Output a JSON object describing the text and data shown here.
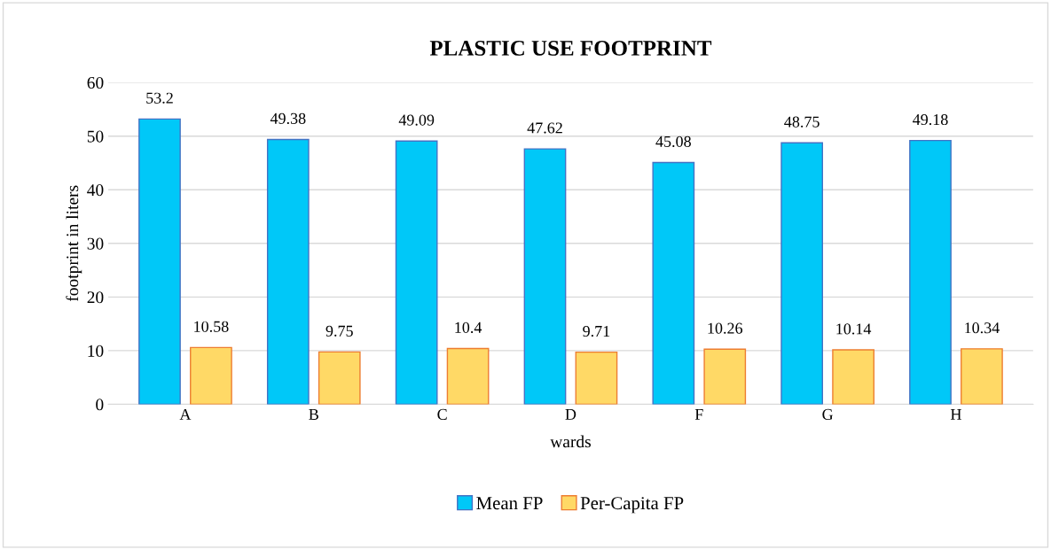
{
  "chart_data": {
    "type": "bar",
    "title": "PLASTIC USE FOOTPRINT",
    "xlabel": "wards",
    "ylabel": "footprint in liters",
    "categories": [
      "A",
      "B",
      "C",
      "D",
      "F",
      "G",
      "H"
    ],
    "series": [
      {
        "name": "Mean FP",
        "color": "#00c8f8",
        "values": [
          53.2,
          49.38,
          49.09,
          47.62,
          45.08,
          48.75,
          49.18
        ]
      },
      {
        "name": "Per-Capita FP",
        "color": "#ffd966",
        "values": [
          10.58,
          9.75,
          10.4,
          9.71,
          10.26,
          10.14,
          10.34
        ]
      }
    ],
    "ylim": [
      0,
      60
    ],
    "yticks": [
      0,
      10,
      20,
      30,
      40,
      50,
      60
    ],
    "grid": "y",
    "legend": "bottom",
    "data_labels": true
  }
}
